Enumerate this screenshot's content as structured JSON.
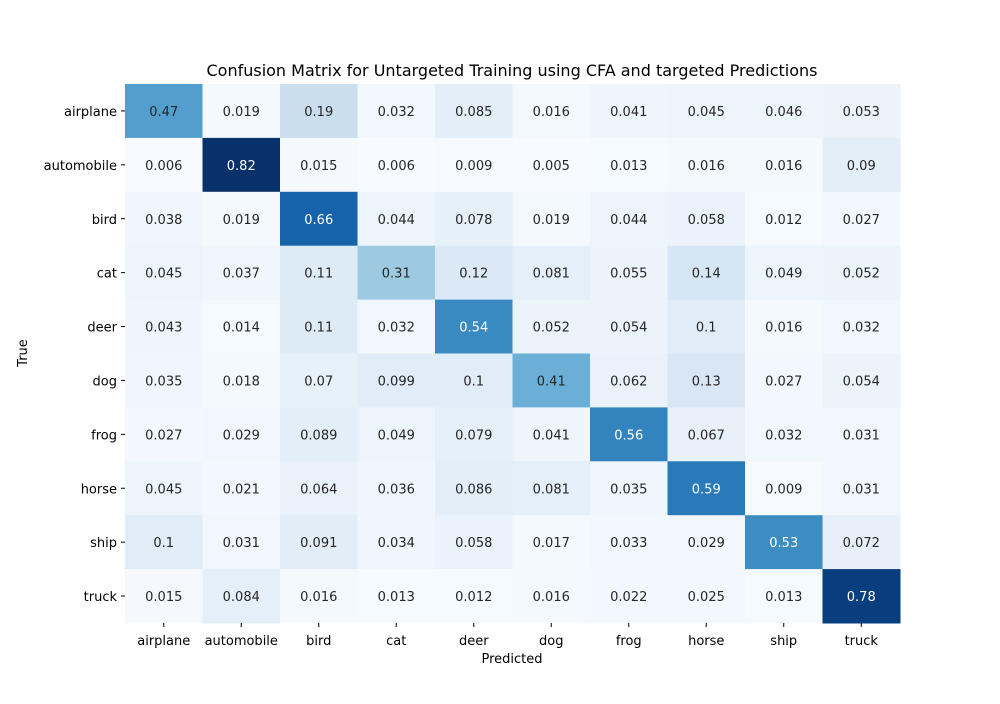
{
  "chart_data": {
    "type": "heatmap",
    "title": "Confusion Matrix for Untargeted Training using CFA and targeted Predictions",
    "xlabel": "Predicted",
    "ylabel": "True",
    "x_categories": [
      "airplane",
      "automobile",
      "bird",
      "cat",
      "deer",
      "dog",
      "frog",
      "horse",
      "ship",
      "truck"
    ],
    "y_categories": [
      "airplane",
      "automobile",
      "bird",
      "cat",
      "deer",
      "dog",
      "frog",
      "horse",
      "ship",
      "truck"
    ],
    "values": [
      [
        "0.47",
        "0.019",
        "0.19",
        "0.032",
        "0.085",
        "0.016",
        "0.041",
        "0.045",
        "0.046",
        "0.053"
      ],
      [
        "0.006",
        "0.82",
        "0.015",
        "0.006",
        "0.009",
        "0.005",
        "0.013",
        "0.016",
        "0.016",
        "0.09"
      ],
      [
        "0.038",
        "0.019",
        "0.66",
        "0.044",
        "0.078",
        "0.019",
        "0.044",
        "0.058",
        "0.012",
        "0.027"
      ],
      [
        "0.045",
        "0.037",
        "0.11",
        "0.31",
        "0.12",
        "0.081",
        "0.055",
        "0.14",
        "0.049",
        "0.052"
      ],
      [
        "0.043",
        "0.014",
        "0.11",
        "0.032",
        "0.54",
        "0.052",
        "0.054",
        "0.1",
        "0.016",
        "0.032"
      ],
      [
        "0.035",
        "0.018",
        "0.07",
        "0.099",
        "0.1",
        "0.41",
        "0.062",
        "0.13",
        "0.027",
        "0.054"
      ],
      [
        "0.027",
        "0.029",
        "0.089",
        "0.049",
        "0.079",
        "0.041",
        "0.56",
        "0.067",
        "0.032",
        "0.031"
      ],
      [
        "0.045",
        "0.021",
        "0.064",
        "0.036",
        "0.086",
        "0.081",
        "0.035",
        "0.59",
        "0.009",
        "0.031"
      ],
      [
        "0.1",
        "0.031",
        "0.091",
        "0.034",
        "0.058",
        "0.017",
        "0.033",
        "0.029",
        "0.53",
        "0.072"
      ],
      [
        "0.015",
        "0.084",
        "0.016",
        "0.013",
        "0.012",
        "0.016",
        "0.022",
        "0.025",
        "0.013",
        "0.78"
      ]
    ],
    "colormap": "Blues",
    "colorbar": false,
    "grid": false
  }
}
